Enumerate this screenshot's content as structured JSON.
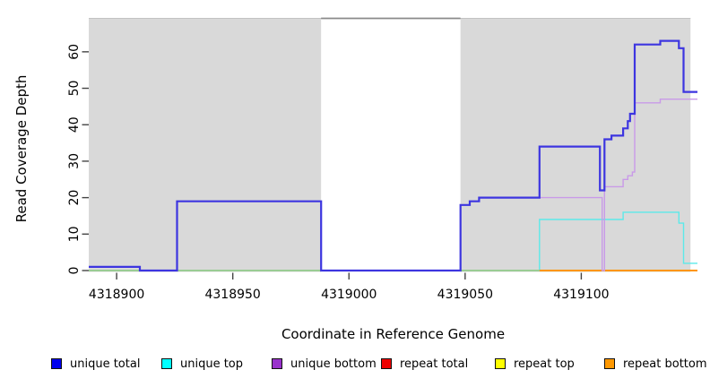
{
  "figure_title": "",
  "legend": {
    "items": [
      {
        "label": "unique total",
        "color": "#0000ee"
      },
      {
        "label": "unique top",
        "color": "#00ffff"
      },
      {
        "label": "unique bottom",
        "color": "#9932cc"
      },
      {
        "label": "repeat total",
        "color": "#ee0000"
      },
      {
        "label": "repeat top",
        "color": "#ffff00"
      },
      {
        "label": "repeat bottom",
        "color": "#ff9800"
      }
    ]
  },
  "chart_data": {
    "type": "line",
    "subtype": "step",
    "title": "",
    "xlabel": "Coordinate in Reference Genome",
    "ylabel": "Read Coverage Depth",
    "xlim": [
      4318888,
      4319150
    ],
    "ylim": [
      0,
      69.3
    ],
    "x_ticks": [
      4318900,
      4318950,
      4319000,
      4319050,
      4319100
    ],
    "y_ticks": [
      0,
      10,
      20,
      30,
      40,
      50,
      60
    ],
    "grid": false,
    "legend_position": "bottom",
    "background_regions": [
      {
        "x0": 4318888,
        "x1": 4318988
      },
      {
        "x0": 4319048,
        "x1": 4319147
      }
    ],
    "gap_region": {
      "x0": 4318988,
      "x1": 4319048
    },
    "series": [
      {
        "name": "repeat total",
        "line_color": "#ee0000",
        "width": 1.4,
        "steps": [
          [
            4318888,
            0
          ],
          [
            4319150,
            0
          ]
        ]
      },
      {
        "name": "repeat top",
        "line_color": "#ffff00",
        "width": 1.4,
        "steps": [
          [
            4318888,
            0
          ],
          [
            4319150,
            0
          ]
        ]
      },
      {
        "name": "unique top",
        "line_color": "#5ce9e9",
        "width": 1.4,
        "steps": [
          [
            4318888,
            0
          ],
          [
            4319082,
            14
          ],
          [
            4319118,
            16
          ],
          [
            4319142,
            13
          ],
          [
            4319144,
            2
          ],
          [
            4319150,
            2
          ]
        ]
      },
      {
        "name": "zero baseline overlap",
        "line_color": "#96ca96",
        "width": 1.4,
        "steps": [
          [
            4318888,
            0
          ],
          [
            4319082,
            0
          ]
        ]
      },
      {
        "name": "repeat bottom",
        "line_color": "#ff9000",
        "width": 1.8,
        "steps": [
          [
            4319082,
            0
          ],
          [
            4319150,
            0
          ]
        ]
      },
      {
        "name": "unique bottom",
        "line_color": "#c99ae8",
        "width": 1.4,
        "steps": [
          [
            4318926,
            19
          ],
          [
            4318988,
            0
          ],
          [
            4319048,
            18
          ],
          [
            4319052,
            19
          ],
          [
            4319056,
            20
          ],
          [
            4319109,
            0
          ],
          [
            4319110,
            23
          ],
          [
            4319118,
            25
          ],
          [
            4319120,
            26
          ],
          [
            4319122,
            27
          ],
          [
            4319123,
            46
          ],
          [
            4319134,
            47
          ],
          [
            4319150,
            47
          ]
        ]
      },
      {
        "name": "unique total",
        "line_color": "#3d35e0",
        "width": 2.2,
        "steps": [
          [
            4318888,
            1
          ],
          [
            4318910,
            0
          ],
          [
            4318926,
            19
          ],
          [
            4318988,
            0
          ],
          [
            4319048,
            18
          ],
          [
            4319052,
            19
          ],
          [
            4319056,
            20
          ],
          [
            4319082,
            34
          ],
          [
            4319108,
            22
          ],
          [
            4319110,
            36
          ],
          [
            4319113,
            37
          ],
          [
            4319118,
            39
          ],
          [
            4319120,
            41
          ],
          [
            4319121,
            43
          ],
          [
            4319123,
            62
          ],
          [
            4319134,
            63
          ],
          [
            4319142,
            61
          ],
          [
            4319144,
            49
          ],
          [
            4319150,
            49
          ]
        ]
      }
    ],
    "colors": {
      "plot_bg": "#d9d9d9",
      "rect_top_edge": "#c2c2c2",
      "gap_top_line": "#8a8a8a",
      "tick": "#444444",
      "text": "#000000"
    }
  }
}
